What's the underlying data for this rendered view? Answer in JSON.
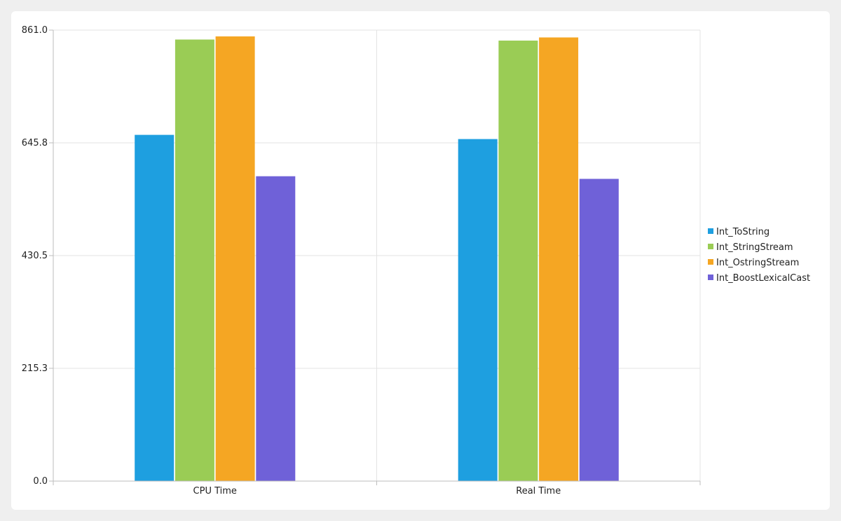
{
  "chart_data": {
    "type": "bar",
    "categories": [
      "CPU Time",
      "Real Time"
    ],
    "series": [
      {
        "name": "Int_ToString",
        "values": [
          661,
          653
        ],
        "color": "#1e9fe0"
      },
      {
        "name": "Int_StringStream",
        "values": [
          843,
          841
        ],
        "color": "#9acc55"
      },
      {
        "name": "Int_OstringStream",
        "values": [
          849,
          847
        ],
        "color": "#f5a623"
      },
      {
        "name": "Int_BoostLexicalCast",
        "values": [
          582,
          577
        ],
        "color": "#6f61d8"
      }
    ],
    "yticks": [
      "0.0",
      "215.3",
      "430.5",
      "645.8",
      "861.0"
    ],
    "ylim": [
      0,
      861.0
    ],
    "grid": true,
    "legend_position": "right"
  }
}
